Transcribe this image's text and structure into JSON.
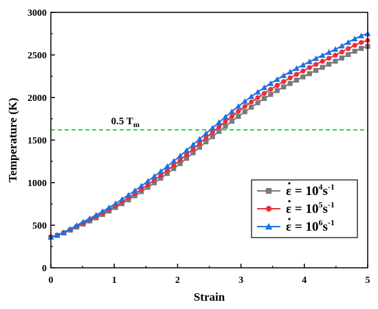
{
  "chart_data": {
    "type": "line",
    "title": "",
    "xlabel": "Strain",
    "ylabel": "Temperature (K)",
    "xlim": [
      0,
      5
    ],
    "ylim": [
      0,
      3000
    ],
    "xticks": [
      0,
      1,
      2,
      3,
      4,
      5
    ],
    "yticks": [
      0,
      500,
      1000,
      1500,
      2000,
      2500,
      3000
    ],
    "grid": false,
    "legend_position": "bottom-right",
    "x": [
      0,
      0.5,
      1,
      1.5,
      2,
      2.5,
      3,
      3.5,
      4,
      4.5,
      5
    ],
    "series": [
      {
        "name": "ε̇ = 10⁴s⁻¹",
        "legend": {
          "base": "ε = 10",
          "exp": "4",
          "unit": "s",
          "unit_exp": "-1"
        },
        "color": "#7a7a7a",
        "marker": "square",
        "values": [
          360,
          510,
          700,
          930,
          1200,
          1510,
          1800,
          2050,
          2250,
          2430,
          2600
        ]
      },
      {
        "name": "ε̇ = 10⁵s⁻¹",
        "legend": {
          "base": "ε = 10",
          "exp": "5",
          "unit": "s",
          "unit_exp": "-1"
        },
        "color": "#e8303a",
        "marker": "circle",
        "values": [
          360,
          520,
          720,
          960,
          1240,
          1560,
          1860,
          2110,
          2320,
          2500,
          2670
        ]
      },
      {
        "name": "ε̇ = 10⁶s⁻¹",
        "legend": {
          "base": "ε = 10",
          "exp": "6",
          "unit": "s",
          "unit_exp": "-1"
        },
        "color": "#1f6fe0",
        "marker": "triangle",
        "values": [
          360,
          535,
          745,
          1000,
          1290,
          1610,
          1920,
          2180,
          2390,
          2570,
          2750
        ]
      }
    ],
    "reference_line": {
      "y": 1620,
      "label": "0.5 T",
      "label_sub": "m",
      "color": "#22dd22"
    }
  }
}
